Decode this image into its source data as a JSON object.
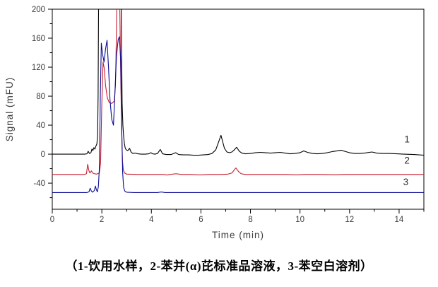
{
  "figure": {
    "caption": "（1-饮用水样，2-苯并(α)芘标准品溶液，3-苯空白溶剂）"
  },
  "colors": {
    "background": "#ffffff",
    "axis": "#000000",
    "tick_label": "#3d3d3d",
    "series_black": "#000000",
    "series_red": "#c81e32",
    "series_blue": "#0b0b96"
  },
  "chart_data": {
    "type": "line",
    "title": "",
    "xlabel": "Time (min)",
    "ylabel": "Signal (mFU)",
    "xlim": [
      0,
      15
    ],
    "ylim": [
      -76,
      200
    ],
    "x_major_ticks": [
      0,
      2,
      4,
      6,
      8,
      10,
      12,
      14
    ],
    "x_minor_ticks": [
      1,
      3,
      5,
      7,
      9,
      11,
      13,
      15
    ],
    "y_major_ticks": [
      -40,
      0,
      40,
      80,
      120,
      160,
      200
    ],
    "y_minor_ticks": [
      -60,
      -20,
      20,
      60,
      100,
      140,
      180
    ],
    "grid": false,
    "legend_position": "inline-right",
    "series_labels": [
      {
        "text": "1",
        "t": 14.32,
        "v": 16
      },
      {
        "text": "2",
        "t": 14.32,
        "v": -13
      },
      {
        "text": "3",
        "t": 14.27,
        "v": -43
      }
    ],
    "series": [
      {
        "name": "1",
        "description": "drinking water sample",
        "color": "#000000",
        "baseline": 0,
        "points": [
          [
            0,
            0
          ],
          [
            0.5,
            0
          ],
          [
            1.0,
            0
          ],
          [
            1.3,
            0
          ],
          [
            1.4,
            0.5
          ],
          [
            1.45,
            4
          ],
          [
            1.5,
            1
          ],
          [
            1.56,
            2
          ],
          [
            1.6,
            7
          ],
          [
            1.64,
            5
          ],
          [
            1.68,
            9
          ],
          [
            1.72,
            7
          ],
          [
            1.76,
            11
          ],
          [
            1.8,
            14
          ],
          [
            1.83,
            25
          ],
          [
            1.85,
            80
          ],
          [
            1.87,
            215
          ],
          [
            2.78,
            215
          ],
          [
            2.8,
            140
          ],
          [
            2.82,
            70
          ],
          [
            2.85,
            40
          ],
          [
            2.88,
            25
          ],
          [
            2.91,
            15
          ],
          [
            2.94,
            9
          ],
          [
            2.98,
            6
          ],
          [
            3.05,
            5
          ],
          [
            3.12,
            8
          ],
          [
            3.18,
            3
          ],
          [
            3.25,
            1
          ],
          [
            3.35,
            1.5
          ],
          [
            3.45,
            0.5
          ],
          [
            3.6,
            0
          ],
          [
            3.75,
            0
          ],
          [
            3.9,
            0.5
          ],
          [
            3.98,
            2
          ],
          [
            4.05,
            0.5
          ],
          [
            4.15,
            0
          ],
          [
            4.25,
            1
          ],
          [
            4.36,
            6.5
          ],
          [
            4.45,
            0.5
          ],
          [
            4.6,
            -0.5
          ],
          [
            4.8,
            -0.5
          ],
          [
            4.98,
            2
          ],
          [
            5.1,
            -0.5
          ],
          [
            5.3,
            -1
          ],
          [
            5.5,
            -1
          ],
          [
            5.7,
            -1.5
          ],
          [
            5.9,
            -1.5
          ],
          [
            6.1,
            -1
          ],
          [
            6.3,
            -0.5
          ],
          [
            6.45,
            1
          ],
          [
            6.6,
            6
          ],
          [
            6.81,
            26
          ],
          [
            6.95,
            8
          ],
          [
            7.05,
            3
          ],
          [
            7.15,
            2
          ],
          [
            7.25,
            3
          ],
          [
            7.35,
            6
          ],
          [
            7.44,
            9.5
          ],
          [
            7.55,
            4
          ],
          [
            7.65,
            1.5
          ],
          [
            7.8,
            0.5
          ],
          [
            8.0,
            1
          ],
          [
            8.2,
            2
          ],
          [
            8.4,
            2.5
          ],
          [
            8.6,
            2
          ],
          [
            8.8,
            1.5
          ],
          [
            9.0,
            2
          ],
          [
            9.2,
            2.5
          ],
          [
            9.4,
            1.5
          ],
          [
            9.6,
            0.5
          ],
          [
            9.8,
            1
          ],
          [
            10.0,
            2
          ],
          [
            10.15,
            4.5
          ],
          [
            10.3,
            2.5
          ],
          [
            10.5,
            1
          ],
          [
            10.7,
            0.5
          ],
          [
            10.9,
            1
          ],
          [
            11.1,
            2
          ],
          [
            11.3,
            3.5
          ],
          [
            11.5,
            4.5
          ],
          [
            11.65,
            5.5
          ],
          [
            11.8,
            4
          ],
          [
            12.0,
            2
          ],
          [
            12.2,
            1
          ],
          [
            12.4,
            1
          ],
          [
            12.6,
            1.5
          ],
          [
            12.9,
            3
          ],
          [
            13.1,
            1.5
          ],
          [
            13.3,
            1
          ],
          [
            13.6,
            1
          ],
          [
            13.9,
            0.5
          ],
          [
            14.2,
            0
          ],
          [
            14.6,
            -0.5
          ],
          [
            15,
            -1.5
          ]
        ]
      },
      {
        "name": "2",
        "description": "benzo(a)pyrene standard solution",
        "color": "#c81e32",
        "baseline": -28,
        "points": [
          [
            0,
            -28
          ],
          [
            0.5,
            -28
          ],
          [
            1.0,
            -28
          ],
          [
            1.3,
            -28
          ],
          [
            1.38,
            -27
          ],
          [
            1.43,
            -14
          ],
          [
            1.48,
            -23
          ],
          [
            1.52,
            -26
          ],
          [
            1.58,
            -23
          ],
          [
            1.63,
            -26
          ],
          [
            1.7,
            -27
          ],
          [
            1.8,
            -27.5
          ],
          [
            1.9,
            -26
          ],
          [
            1.95,
            -12
          ],
          [
            2.0,
            70
          ],
          [
            2.05,
            127
          ],
          [
            2.1,
            118
          ],
          [
            2.15,
            95
          ],
          [
            2.22,
            78
          ],
          [
            2.3,
            71
          ],
          [
            2.4,
            70
          ],
          [
            2.5,
            73
          ],
          [
            2.55,
            95
          ],
          [
            2.58,
            150
          ],
          [
            2.61,
            215
          ],
          [
            2.72,
            215
          ],
          [
            2.75,
            140
          ],
          [
            2.79,
            50
          ],
          [
            2.83,
            -8
          ],
          [
            2.87,
            -22
          ],
          [
            2.92,
            -26
          ],
          [
            3.0,
            -27.5
          ],
          [
            3.5,
            -28
          ],
          [
            4.0,
            -28
          ],
          [
            4.5,
            -28
          ],
          [
            4.62,
            -28.8
          ],
          [
            4.75,
            -28
          ],
          [
            5.0,
            -27
          ],
          [
            5.2,
            -28
          ],
          [
            5.6,
            -28
          ],
          [
            5.97,
            -28.6
          ],
          [
            6.3,
            -28
          ],
          [
            6.8,
            -28
          ],
          [
            7.1,
            -27.5
          ],
          [
            7.25,
            -26
          ],
          [
            7.41,
            -19
          ],
          [
            7.52,
            -24
          ],
          [
            7.62,
            -27
          ],
          [
            7.8,
            -28
          ],
          [
            8.2,
            -28
          ],
          [
            8.6,
            -28
          ],
          [
            9.0,
            -28
          ],
          [
            9.4,
            -28
          ],
          [
            9.85,
            -28.5
          ],
          [
            10.2,
            -28
          ],
          [
            10.8,
            -28
          ],
          [
            11.4,
            -28.4
          ],
          [
            11.8,
            -28
          ],
          [
            12.4,
            -28
          ],
          [
            13.0,
            -28
          ],
          [
            13.6,
            -28
          ],
          [
            14.2,
            -28
          ],
          [
            15,
            -28
          ]
        ]
      },
      {
        "name": "3",
        "description": "benzene blank solvent",
        "color": "#0b0b96",
        "baseline": -53,
        "points": [
          [
            0,
            -53
          ],
          [
            0.5,
            -53
          ],
          [
            1.0,
            -53
          ],
          [
            1.4,
            -53
          ],
          [
            1.48,
            -52
          ],
          [
            1.53,
            -47
          ],
          [
            1.58,
            -51
          ],
          [
            1.63,
            -52.5
          ],
          [
            1.7,
            -50
          ],
          [
            1.74,
            -44
          ],
          [
            1.78,
            -49
          ],
          [
            1.82,
            -52
          ],
          [
            1.86,
            -45
          ],
          [
            1.9,
            -20
          ],
          [
            1.94,
            80
          ],
          [
            1.98,
            153
          ],
          [
            2.03,
            138
          ],
          [
            2.09,
            127
          ],
          [
            2.15,
            145
          ],
          [
            2.21,
            157
          ],
          [
            2.27,
            120
          ],
          [
            2.33,
            75
          ],
          [
            2.4,
            48
          ],
          [
            2.47,
            40
          ],
          [
            2.53,
            85
          ],
          [
            2.59,
            135
          ],
          [
            2.66,
            158
          ],
          [
            2.71,
            162
          ],
          [
            2.76,
            130
          ],
          [
            2.8,
            40
          ],
          [
            2.84,
            -25
          ],
          [
            2.88,
            -46
          ],
          [
            2.93,
            -51
          ],
          [
            3.0,
            -52.5
          ],
          [
            3.3,
            -53
          ],
          [
            3.8,
            -53
          ],
          [
            4.25,
            -53
          ],
          [
            4.4,
            -52.2
          ],
          [
            4.55,
            -53
          ],
          [
            5.0,
            -53
          ],
          [
            6.0,
            -53
          ],
          [
            7.0,
            -53
          ],
          [
            8.0,
            -53
          ],
          [
            9.0,
            -53
          ],
          [
            10.0,
            -53
          ],
          [
            11.0,
            -53
          ],
          [
            12.0,
            -53
          ],
          [
            13.0,
            -53
          ],
          [
            14.0,
            -53
          ],
          [
            15.0,
            -53
          ]
        ]
      }
    ]
  }
}
